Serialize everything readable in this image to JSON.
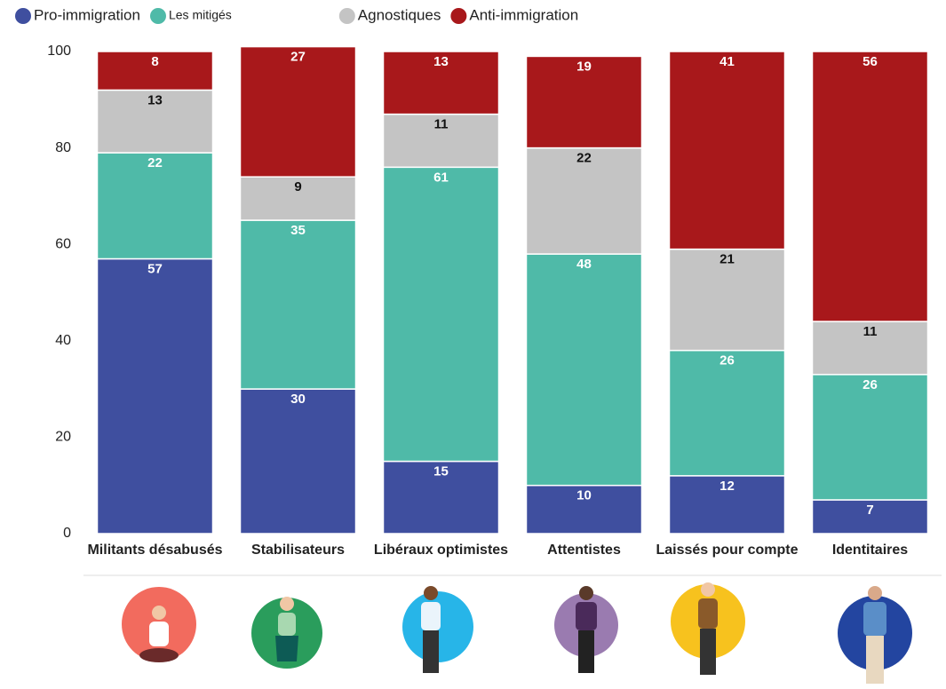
{
  "chart_data": {
    "type": "stacked_bar",
    "categories": [
      "Militants désabusés",
      "Stabilisateurs",
      "Libéraux optimistes",
      "Attentistes",
      "Laissés pour compte",
      "Identitaires"
    ],
    "series": [
      {
        "name": "Pro-immigration",
        "color": "#3f4f9f",
        "values": [
          57,
          30,
          15,
          10,
          12,
          7
        ]
      },
      {
        "name": "Les mitigés",
        "color": "#4fbaa8",
        "values": [
          22,
          35,
          61,
          48,
          26,
          26
        ]
      },
      {
        "name": "Agnostiques",
        "color": "#c4c4c4",
        "values": [
          13,
          9,
          11,
          22,
          21,
          11
        ]
      },
      {
        "name": "Anti-immigration",
        "color": "#a8181b",
        "values": [
          8,
          27,
          13,
          19,
          41,
          56
        ]
      }
    ],
    "ylim": [
      0,
      100
    ],
    "yticks": [
      0,
      20,
      40,
      60,
      80,
      100
    ],
    "grid": false
  }
}
